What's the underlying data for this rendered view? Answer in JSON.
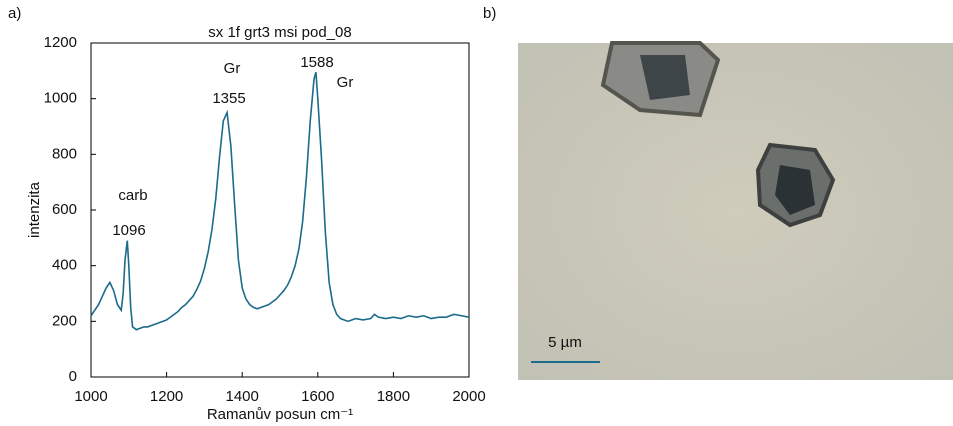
{
  "panels": [
    "a)",
    "b)"
  ],
  "chart_data": {
    "type": "line",
    "title": "sx 1f grt3 msi pod_08",
    "x_label": "Ramanův posun cm⁻¹",
    "y_label": "intenzita",
    "x": [
      1000,
      1010,
      1020,
      1030,
      1040,
      1050,
      1060,
      1070,
      1080,
      1085,
      1090,
      1096,
      1100,
      1105,
      1110,
      1120,
      1130,
      1140,
      1150,
      1160,
      1170,
      1180,
      1190,
      1200,
      1210,
      1220,
      1230,
      1240,
      1250,
      1260,
      1270,
      1280,
      1290,
      1300,
      1310,
      1320,
      1330,
      1340,
      1350,
      1360,
      1370,
      1380,
      1390,
      1400,
      1410,
      1420,
      1430,
      1440,
      1450,
      1460,
      1470,
      1480,
      1490,
      1500,
      1510,
      1520,
      1530,
      1540,
      1550,
      1560,
      1570,
      1580,
      1590,
      1595,
      1600,
      1610,
      1620,
      1630,
      1640,
      1650,
      1660,
      1670,
      1680,
      1690,
      1700,
      1720,
      1740,
      1750,
      1760,
      1780,
      1800,
      1820,
      1840,
      1860,
      1880,
      1900,
      1920,
      1940,
      1960,
      1980,
      2000
    ],
    "values": [
      220,
      240,
      260,
      290,
      320,
      340,
      310,
      260,
      240,
      300,
      420,
      490,
      400,
      250,
      180,
      170,
      175,
      180,
      180,
      185,
      190,
      195,
      200,
      205,
      215,
      225,
      235,
      250,
      260,
      275,
      290,
      315,
      345,
      390,
      450,
      530,
      640,
      790,
      920,
      950,
      830,
      620,
      420,
      320,
      280,
      260,
      250,
      245,
      250,
      255,
      260,
      270,
      280,
      295,
      310,
      330,
      360,
      400,
      460,
      560,
      720,
      920,
      1070,
      1095,
      1000,
      780,
      520,
      340,
      260,
      225,
      210,
      205,
      200,
      205,
      210,
      205,
      210,
      225,
      215,
      210,
      215,
      210,
      220,
      215,
      220,
      210,
      215,
      215,
      225,
      220,
      215
    ],
    "color": "#1b6b8a",
    "xlim": [
      1000,
      2000
    ],
    "xticks": [
      1000,
      1200,
      1400,
      1600,
      1800,
      2000
    ],
    "ylim": [
      0,
      1200
    ],
    "yticks": [
      0,
      200,
      400,
      600,
      800,
      1000,
      1200
    ],
    "grid": false,
    "annotations": [
      "carb",
      "1096",
      "Gr",
      "1355",
      "1588",
      "Gr"
    ]
  },
  "micrograph": {
    "scale_label": "5 µm"
  }
}
